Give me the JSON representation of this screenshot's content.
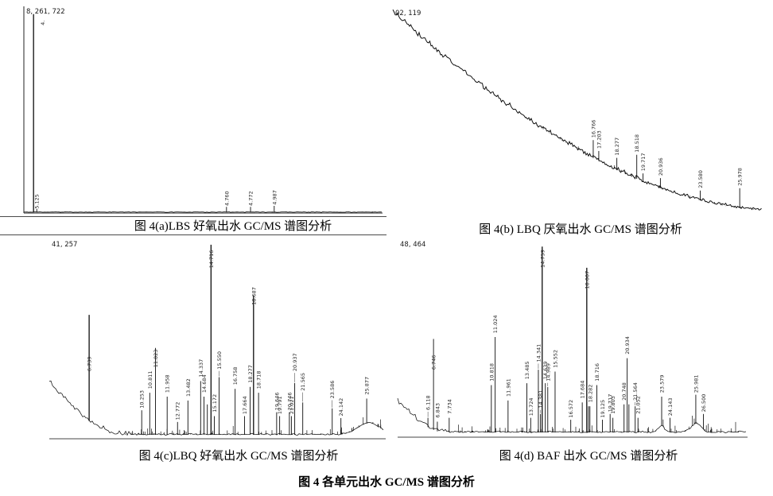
{
  "figure": {
    "main_caption": "图 4  各单元出水 GC/MS 谱图分析"
  },
  "chart_data": [
    {
      "id": "a",
      "type": "line",
      "title": "图 4(a)LBS 好氧出水 GC/MS 谱图分析",
      "corner_label": "8, 261, 722",
      "xlabel": "",
      "ylabel": "",
      "grid": false,
      "legend": false,
      "baseline": {
        "type": "flat"
      },
      "noise": 0.5,
      "seed": 11,
      "spikes": {
        "t0": 0.05,
        "t1": 1,
        "n": 25,
        "max": 0.008
      },
      "peaks": [
        {
          "rt": "",
          "x": 0.027,
          "h": 0.97
        },
        {
          "rt": "5.125",
          "x": 0.036,
          "h": 0.02,
          "ly": 0.02
        },
        {
          "rt": "4.",
          "x": 0.052,
          "h": 0,
          "ly": 0.915,
          "noleader": true
        },
        {
          "rt": "4.760",
          "x": 0.565,
          "h": 0.03,
          "ly": 0.035
        },
        {
          "rt": "4.772",
          "x": 0.632,
          "h": 0.03,
          "ly": 0.035
        },
        {
          "rt": "4.987",
          "x": 0.698,
          "h": 0.035,
          "ly": 0.04
        }
      ]
    },
    {
      "id": "b",
      "type": "line",
      "title": "图 4(b) LBQ 厌氧出水 GC/MS 谱图分析",
      "corner_label": "02, 119",
      "xlabel": "",
      "ylabel": "",
      "grid": false,
      "legend": false,
      "baseline": {
        "type": "decay",
        "q": 1.71,
        "drop": 0.985
      },
      "noise": 2.3,
      "seed": 22,
      "spikes": {
        "t0": 0.3,
        "t1": 1,
        "n": 40,
        "max": 0.025
      },
      "peaks": [
        {
          "rt": "16.766",
          "x": 0.543,
          "h": 0.09
        },
        {
          "rt": "17.203",
          "x": 0.558,
          "h": 0.05
        },
        {
          "rt": "18.277",
          "x": 0.607,
          "h": 0.06
        },
        {
          "rt": "18.518",
          "x": 0.661,
          "h": 0.12
        },
        {
          "rt": "19.717",
          "x": 0.678,
          "h": 0.04
        },
        {
          "rt": "20.936",
          "x": 0.725,
          "h": 0.05
        },
        {
          "rt": "23.580",
          "x": 0.833,
          "h": 0.05
        },
        {
          "rt": "25.978",
          "x": 0.94,
          "h": 0.1
        }
      ]
    },
    {
      "id": "c",
      "type": "line",
      "title": "图 4(c)LBQ 好氧出水 GC/MS 谱图分析",
      "corner_label": "41, 257",
      "xlabel": "",
      "ylabel": "",
      "grid": false,
      "legend": false,
      "baseline": {
        "type": "front",
        "span": 0.21,
        "amp": 0.27
      },
      "bumps": [
        {
          "c": 0.955,
          "w": 0.045,
          "a": 0.06
        }
      ],
      "noise": 1.3,
      "seed": 33,
      "spikes": {
        "t0": 0.22,
        "t1": 1,
        "n": 80,
        "max": 0.055
      },
      "peaks": [
        {
          "rt": "6.739",
          "x": 0.119,
          "h": 0.62,
          "ly": 0.33
        },
        {
          "rt": "10.253",
          "x": 0.276,
          "h": 0.13,
          "ly": 0.14
        },
        {
          "rt": "10.811",
          "x": 0.3,
          "h": 0.22,
          "ly": 0.24
        },
        {
          "rt": "11.023",
          "x": 0.317,
          "h": 0.45,
          "ly": 0.35
        },
        {
          "rt": "11.958",
          "x": 0.352,
          "h": 0.2,
          "ly": 0.22
        },
        {
          "rt": "12.772",
          "x": 0.383,
          "h": 0.07,
          "ly": 0.08
        },
        {
          "rt": "13.482",
          "x": 0.414,
          "h": 0.18,
          "ly": 0.2
        },
        {
          "rt": "14.337",
          "x": 0.452,
          "h": 0.28,
          "ly": 0.3
        },
        {
          "rt": "14.684",
          "x": 0.462,
          "h": 0.2,
          "ly": 0.22
        },
        {
          "rt": "",
          "x": 0.472,
          "h": 0.16
        },
        {
          "rt": "14.716",
          "x": 0.483,
          "h": 0.98,
          "ly": 0.86
        },
        {
          "rt": "15.172",
          "x": 0.493,
          "h": 0.1,
          "ly": 0.12
        },
        {
          "rt": "15.550",
          "x": 0.507,
          "h": 0.3,
          "ly": 0.34
        },
        {
          "rt": "16.758",
          "x": 0.555,
          "h": 0.24,
          "ly": 0.26
        },
        {
          "rt": "17.664",
          "x": 0.583,
          "h": 0.1,
          "ly": 0.11
        },
        {
          "rt": "18.277",
          "x": 0.6,
          "h": 0.25,
          "ly": 0.27
        },
        {
          "rt": "18.687",
          "x": 0.61,
          "h": 0.72,
          "ly": 0.67
        },
        {
          "rt": "18.718",
          "x": 0.625,
          "h": 0.22,
          "ly": 0.24
        },
        {
          "rt": "19.646",
          "x": 0.679,
          "h": 0.12,
          "ly": 0.13
        },
        {
          "rt": "19.791",
          "x": 0.688,
          "h": 0.1,
          "ly": 0.11
        },
        {
          "rt": "20.746",
          "x": 0.717,
          "h": 0.12,
          "ly": 0.13
        },
        {
          "rt": "21.021",
          "x": 0.723,
          "h": 0.1,
          "ly": 0.11
        },
        {
          "rt": "20.937",
          "x": 0.733,
          "h": 0.27,
          "ly": 0.33
        },
        {
          "rt": "21.565",
          "x": 0.757,
          "h": 0.17,
          "ly": 0.23
        },
        {
          "rt": "23.586",
          "x": 0.845,
          "h": 0.14,
          "ly": 0.19
        },
        {
          "rt": "24.142",
          "x": 0.871,
          "h": 0.09,
          "ly": 0.1
        },
        {
          "rt": "25.877",
          "x": 0.948,
          "h": 0.19,
          "ly": 0.21
        }
      ]
    },
    {
      "id": "d",
      "type": "line",
      "title": "图 4(d) BAF 出水 GC/MS 谱图分析",
      "corner_label": "48, 464",
      "xlabel": "",
      "ylabel": "",
      "grid": false,
      "legend": false,
      "baseline": {
        "type": "front",
        "span": 0.13,
        "amp": 0.16
      },
      "bumps": [
        {
          "c": 0.757,
          "w": 0.012,
          "a": 0.035
        },
        {
          "c": 0.857,
          "w": 0.02,
          "a": 0.045
        }
      ],
      "noise": 1.3,
      "seed": 44,
      "spikes": {
        "t0": 0.16,
        "t1": 1,
        "n": 100,
        "max": 0.06
      },
      "peaks": [
        {
          "rt": "6.118",
          "x": 0.087,
          "h": 0.08,
          "ly": 0.12
        },
        {
          "rt": "6.746",
          "x": 0.103,
          "h": 0.49,
          "ly": 0.33
        },
        {
          "rt": "6.843",
          "x": 0.114,
          "h": 0.06,
          "ly": 0.08
        },
        {
          "rt": "7.734",
          "x": 0.148,
          "h": 0.08,
          "ly": 0.1
        },
        {
          "rt": "10.818",
          "x": 0.269,
          "h": 0.25,
          "ly": 0.27
        },
        {
          "rt": "11.024",
          "x": 0.28,
          "h": 0.5,
          "ly": 0.52
        },
        {
          "rt": "11.961",
          "x": 0.317,
          "h": 0.17,
          "ly": 0.19
        },
        {
          "rt": "13.485",
          "x": 0.371,
          "h": 0.26,
          "ly": 0.28
        },
        {
          "rt": "13.724",
          "x": 0.382,
          "h": 0.08,
          "ly": 0.09
        },
        {
          "rt": "14.341",
          "x": 0.404,
          "h": 0.33,
          "ly": 0.37
        },
        {
          "rt": "14.381",
          "x": 0.41,
          "h": 0.1,
          "ly": 0.13
        },
        {
          "rt": "14.759",
          "x": 0.415,
          "h": 0.97,
          "ly": 0.86
        },
        {
          "rt": "14.639",
          "x": 0.424,
          "h": 0.26,
          "ly": 0.28
        },
        {
          "rt": "14.989",
          "x": 0.431,
          "h": 0.24,
          "ly": 0.27
        },
        {
          "rt": "15.552",
          "x": 0.452,
          "h": 0.32,
          "ly": 0.34
        },
        {
          "rt": "16.572",
          "x": 0.497,
          "h": 0.07,
          "ly": 0.08
        },
        {
          "rt": "17.684",
          "x": 0.53,
          "h": 0.16,
          "ly": 0.18
        },
        {
          "rt": "18.007",
          "x": 0.543,
          "h": 0.86,
          "ly": 0.75
        },
        {
          "rt": "",
          "x": 0.548,
          "h": 0.14
        },
        {
          "rt": "18.282",
          "x": 0.552,
          "h": 0.14,
          "ly": 0.16
        },
        {
          "rt": "18.716",
          "x": 0.572,
          "h": 0.25,
          "ly": 0.27
        },
        {
          "rt": "19.125",
          "x": 0.588,
          "h": 0.07,
          "ly": 0.08
        },
        {
          "rt": "19.717",
          "x": 0.61,
          "h": 0.1,
          "ly": 0.11
        },
        {
          "rt": "19.803",
          "x": 0.618,
          "h": 0.08,
          "ly": 0.1
        },
        {
          "rt": "20.748",
          "x": 0.65,
          "h": 0.15,
          "ly": 0.17
        },
        {
          "rt": "20.934",
          "x": 0.659,
          "h": 0.39,
          "ly": 0.41
        },
        {
          "rt": "",
          "x": 0.664,
          "h": 0.15
        },
        {
          "rt": "21.564",
          "x": 0.682,
          "h": 0.14,
          "ly": 0.17
        },
        {
          "rt": "21.052",
          "x": 0.69,
          "h": 0.08,
          "ly": 0.1
        },
        {
          "rt": "23.579",
          "x": 0.758,
          "h": 0.19,
          "ly": 0.21
        },
        {
          "rt": "24.143",
          "x": 0.782,
          "h": 0.08,
          "ly": 0.09
        },
        {
          "rt": "25.981",
          "x": 0.856,
          "h": 0.2,
          "ly": 0.21
        },
        {
          "rt": "26.500",
          "x": 0.878,
          "h": 0.1,
          "ly": 0.11
        }
      ]
    }
  ]
}
